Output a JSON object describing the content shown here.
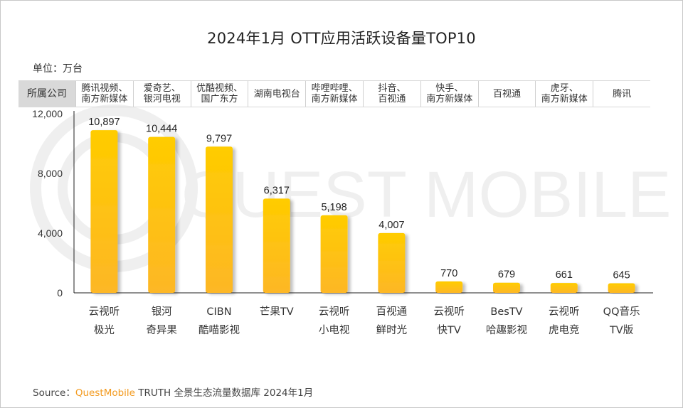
{
  "title": "2024年1月 OTT应用活跃设备量TOP10",
  "unit_label": "单位：万台",
  "company_row": {
    "header": "所属公司",
    "companies": [
      "腾讯视频、\n南方新媒体",
      "爱奇艺、\n银河电视",
      "优酷视频、\n国广东方",
      "湖南电视台",
      "哔哩哔哩、\n南方新媒体",
      "抖音、\n百视通",
      "快手、\n南方新媒体",
      "百视通",
      "虎牙、\n南方新媒体",
      "腾讯"
    ]
  },
  "watermark": "QUEST MOBILE",
  "source": {
    "prefix": "Source：",
    "brand": "QuestMobile",
    "suffix": " TRUTH 全景生态流量数据库 2024年1月"
  },
  "colors": {
    "bar_top": "#ffcc00",
    "bar_bottom": "#fdb726",
    "brand": "#f39a1e",
    "axis": "#222222"
  },
  "chart_data": {
    "type": "bar",
    "title": "2024年1月 OTT应用活跃设备量TOP10",
    "xlabel": "",
    "ylabel": "单位：万台",
    "ylim": [
      0,
      12000
    ],
    "yticks": [
      0,
      4000,
      8000,
      12000
    ],
    "ytick_labels": [
      "0",
      "4,000",
      "8,000",
      "12,000"
    ],
    "grid": false,
    "categories": [
      [
        "云视听",
        "极光"
      ],
      [
        "银河",
        "奇异果"
      ],
      [
        "CIBN",
        "酷喵影视"
      ],
      [
        "芒果TV"
      ],
      [
        "云视听",
        "小电视"
      ],
      [
        "百视通",
        "鲜时光"
      ],
      [
        "云视听",
        "快TV"
      ],
      [
        "BesTV",
        "哈趣影视"
      ],
      [
        "云视听",
        "虎电竞"
      ],
      [
        "QQ音乐",
        "TV版"
      ]
    ],
    "values": [
      10897,
      10444,
      9797,
      6317,
      5198,
      4007,
      770,
      679,
      661,
      645
    ],
    "value_labels": [
      "10,897",
      "10,444",
      "9,797",
      "6,317",
      "5,198",
      "4,007",
      "770",
      "679",
      "661",
      "645"
    ]
  }
}
